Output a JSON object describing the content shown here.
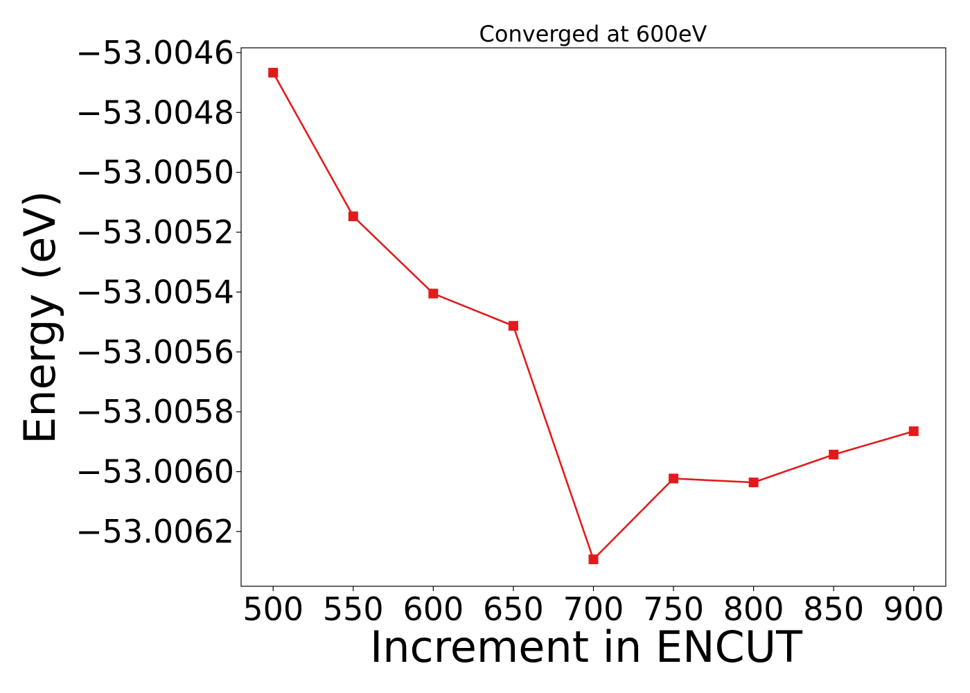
{
  "chart_data": {
    "type": "line",
    "title": "Converged at 600eV",
    "xlabel": "Increment in ENCUT",
    "ylabel": "Energy (eV)",
    "x": [
      500,
      550,
      600,
      650,
      700,
      750,
      800,
      850,
      900
    ],
    "series": [
      {
        "values": [
          -53.004667,
          -53.005147,
          -53.005405,
          -53.005513,
          -53.006293,
          -53.006023,
          -53.006036,
          -53.005943,
          -53.005865
        ],
        "color": "#e31a1c",
        "marker": "square"
      }
    ],
    "xlim": [
      480,
      920
    ],
    "ylim": [
      -53.006383,
      -53.004584
    ],
    "xticks": [
      500,
      550,
      600,
      650,
      700,
      750,
      800,
      850,
      900
    ],
    "xtick_labels": [
      "500",
      "550",
      "600",
      "650",
      "700",
      "750",
      "800",
      "850",
      "900"
    ],
    "yticks": [
      -53.0046,
      -53.0048,
      -53.005,
      -53.0052,
      -53.0054,
      -53.0056,
      -53.0058,
      -53.006,
      -53.0062
    ],
    "ytick_labels": [
      "−53.0046",
      "−53.0048",
      "−53.0050",
      "−53.0052",
      "−53.0054",
      "−53.0056",
      "−53.0058",
      "−53.0060",
      "−53.0062"
    ],
    "grid": false,
    "legend": null
  }
}
